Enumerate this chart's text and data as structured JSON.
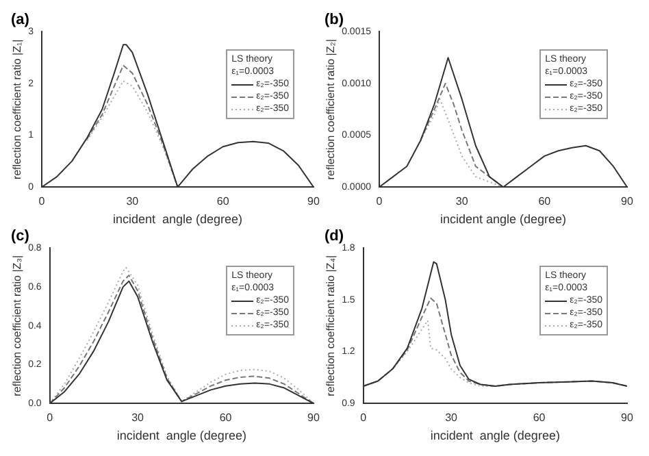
{
  "chart_data": [
    {
      "type": "line",
      "title": "(a)",
      "xlabel": "incident  angle (degree)",
      "ylabel": "reflection coefficient ratio |Z₁|",
      "xlim": [
        0,
        90
      ],
      "xticks": [
        0,
        30,
        60,
        90
      ],
      "ylim": [
        0,
        3
      ],
      "yticks": [
        0,
        1,
        2,
        3
      ],
      "legend": "top right",
      "legend_title": "LS theory\nε₁=0.0003",
      "grid": false,
      "marker": "none",
      "series": [
        {
          "name": "ε₂=-350",
          "color": "#333333",
          "line_style": "solid",
          "x": [
            0,
            5,
            10,
            15,
            20,
            24,
            27,
            28,
            30,
            35,
            40,
            45,
            50,
            55,
            60,
            65,
            70,
            75,
            80,
            85,
            90
          ],
          "values": [
            0,
            0.2,
            0.5,
            0.95,
            1.5,
            2.2,
            2.75,
            2.75,
            2.6,
            1.8,
            0.9,
            0,
            0.35,
            0.6,
            0.78,
            0.86,
            0.88,
            0.85,
            0.7,
            0.42,
            0
          ]
        },
        {
          "name": "ε₂=-350",
          "color": "#777777",
          "line_style": "dashed",
          "x": [
            15,
            20,
            24,
            27,
            30,
            35,
            40,
            45
          ],
          "values": [
            0.93,
            1.4,
            1.95,
            2.35,
            2.2,
            1.6,
            0.85,
            0
          ]
        },
        {
          "name": "ε₂=-350",
          "color": "#aaaaaa",
          "line_style": "dotted",
          "x": [
            15,
            20,
            24,
            27,
            30,
            35,
            40,
            45
          ],
          "values": [
            0.9,
            1.35,
            1.75,
            2.05,
            1.95,
            1.45,
            0.8,
            0
          ]
        }
      ]
    },
    {
      "type": "line",
      "title": "(b)",
      "xlabel": "incident angle (degree)",
      "ylabel": "reflection coefficient ratio |Z₂|",
      "xlim": [
        0,
        90
      ],
      "xticks": [
        0,
        30,
        60,
        90
      ],
      "ylim": [
        0,
        0.0015
      ],
      "yticks": [
        {
          "value": 0,
          "label": "0.0000"
        },
        {
          "value": 0.0005,
          "label": "0.0005"
        },
        {
          "value": 0.001,
          "label": "0.0010"
        },
        {
          "value": 0.0015,
          "label": "0.0015"
        }
      ],
      "legend": "top right",
      "legend_title": "LS theory\nε₁=0.0003",
      "grid": false,
      "marker": "none",
      "series": [
        {
          "name": "ε₂=-350",
          "color": "#333333",
          "line_style": "solid",
          "x": [
            0,
            5,
            10,
            15,
            20,
            25,
            30,
            35,
            40,
            45,
            50,
            55,
            60,
            65,
            70,
            75,
            80,
            85,
            90
          ],
          "values": [
            0,
            0.0001,
            0.0002,
            0.00045,
            0.0008,
            0.00125,
            0.00085,
            0.0004,
            0.0001,
            0,
            0.0001,
            0.0002,
            0.0003,
            0.00035,
            0.00038,
            0.0004,
            0.00035,
            0.0002,
            0
          ]
        },
        {
          "name": "ε₂=-350",
          "color": "#777777",
          "line_style": "dashed",
          "x": [
            15,
            20,
            24,
            27,
            30,
            35,
            40,
            45
          ],
          "values": [
            0.00045,
            0.00075,
            0.001,
            0.0008,
            0.00055,
            0.0002,
            0.0001,
            0
          ]
        },
        {
          "name": "ε₂=-350",
          "color": "#aaaaaa",
          "line_style": "dotted",
          "x": [
            15,
            20,
            22,
            25,
            30,
            35,
            40,
            45
          ],
          "values": [
            0.00045,
            0.0007,
            0.00085,
            0.00065,
            0.0003,
            0.0001,
            5e-05,
            0
          ]
        }
      ]
    },
    {
      "type": "line",
      "title": "(c)",
      "xlabel": "incident  angle (degree)",
      "ylabel": "reflection coefficient ratio |Z₃|",
      "xlim": [
        0,
        90
      ],
      "xticks": [
        0,
        30,
        60,
        90
      ],
      "ylim": [
        0,
        0.8
      ],
      "yticks": [
        {
          "value": 0,
          "label": "0.0"
        },
        {
          "value": 0.2,
          "label": "0.2"
        },
        {
          "value": 0.4,
          "label": "0.4"
        },
        {
          "value": 0.6,
          "label": "0.6"
        },
        {
          "value": 0.8,
          "label": "0.8"
        }
      ],
      "legend": "top right",
      "legend_title": "LS theory\nε₁=0.0003",
      "grid": false,
      "marker": "none",
      "series": [
        {
          "name": "ε₂=-350",
          "color": "#333333",
          "line_style": "solid",
          "x": [
            0,
            5,
            10,
            15,
            20,
            25,
            27,
            30,
            35,
            40,
            45,
            50,
            55,
            60,
            65,
            70,
            75,
            80,
            85,
            90
          ],
          "values": [
            0,
            0.06,
            0.15,
            0.27,
            0.42,
            0.6,
            0.63,
            0.55,
            0.32,
            0.12,
            0.01,
            0.04,
            0.07,
            0.09,
            0.1,
            0.105,
            0.1,
            0.08,
            0.04,
            0
          ]
        },
        {
          "name": "ε₂=-350",
          "color": "#777777",
          "line_style": "dashed",
          "x": [
            0,
            5,
            10,
            15,
            20,
            25,
            27,
            30,
            35,
            40,
            45,
            50,
            55,
            60,
            65,
            70,
            75,
            80,
            85,
            90
          ],
          "values": [
            0,
            0.08,
            0.19,
            0.32,
            0.47,
            0.63,
            0.66,
            0.58,
            0.34,
            0.13,
            0.01,
            0.05,
            0.09,
            0.12,
            0.135,
            0.14,
            0.13,
            0.1,
            0.05,
            0
          ]
        },
        {
          "name": "ε₂=-350",
          "color": "#aaaaaa",
          "line_style": "dotted",
          "x": [
            0,
            5,
            10,
            15,
            20,
            25,
            26,
            30,
            35,
            40,
            45,
            50,
            55,
            60,
            65,
            70,
            75,
            80,
            85,
            90
          ],
          "values": [
            0,
            0.1,
            0.23,
            0.37,
            0.52,
            0.68,
            0.7,
            0.61,
            0.36,
            0.14,
            0.01,
            0.06,
            0.11,
            0.15,
            0.17,
            0.175,
            0.165,
            0.13,
            0.07,
            0
          ]
        }
      ]
    },
    {
      "type": "line",
      "title": "(d)",
      "xlabel": "incident  angle (degree)",
      "ylabel": "reflection coefficient ratio |Z₄|",
      "xlim": [
        0,
        90
      ],
      "xticks": [
        0,
        30,
        60,
        90
      ],
      "ylim": [
        0.9,
        1.8
      ],
      "yticks": [
        0.9,
        1.2,
        1.5,
        1.8
      ],
      "legend": "top right",
      "legend_title": "LS theory\nε₁=0.0003",
      "grid": false,
      "marker": "none",
      "series": [
        {
          "name": "ε₂=-350",
          "color": "#333333",
          "line_style": "solid",
          "x": [
            0,
            5,
            10,
            15,
            20,
            24,
            25,
            28,
            30,
            33,
            36,
            40,
            45,
            50,
            60,
            70,
            78,
            85,
            90
          ],
          "values": [
            1.0,
            1.03,
            1.1,
            1.22,
            1.45,
            1.72,
            1.71,
            1.5,
            1.3,
            1.12,
            1.04,
            1.01,
            1.0,
            1.01,
            1.02,
            1.025,
            1.03,
            1.02,
            1.0
          ]
        },
        {
          "name": "ε₂=-350",
          "color": "#777777",
          "line_style": "dashed",
          "x": [
            0,
            5,
            10,
            15,
            20,
            23,
            25,
            28,
            30,
            33,
            36,
            40,
            45,
            50,
            60,
            70,
            78,
            85,
            90
          ],
          "values": [
            1.0,
            1.03,
            1.1,
            1.21,
            1.4,
            1.51,
            1.48,
            1.3,
            1.18,
            1.08,
            1.03,
            1.01,
            1.0,
            1.01,
            1.02,
            1.025,
            1.03,
            1.02,
            1.0
          ]
        },
        {
          "name": "ε₂=-350",
          "color": "#aaaaaa",
          "line_style": "dotted",
          "x": [
            0,
            5,
            10,
            15,
            20,
            22,
            23,
            25,
            28,
            30,
            33,
            36,
            40,
            45,
            50,
            60,
            70,
            78,
            85,
            90
          ],
          "values": [
            1.0,
            1.03,
            1.1,
            1.2,
            1.33,
            1.38,
            1.22,
            1.21,
            1.16,
            1.1,
            1.05,
            1.02,
            1.0,
            1.0,
            1.01,
            1.02,
            1.025,
            1.03,
            1.02,
            1.0
          ]
        }
      ]
    }
  ]
}
